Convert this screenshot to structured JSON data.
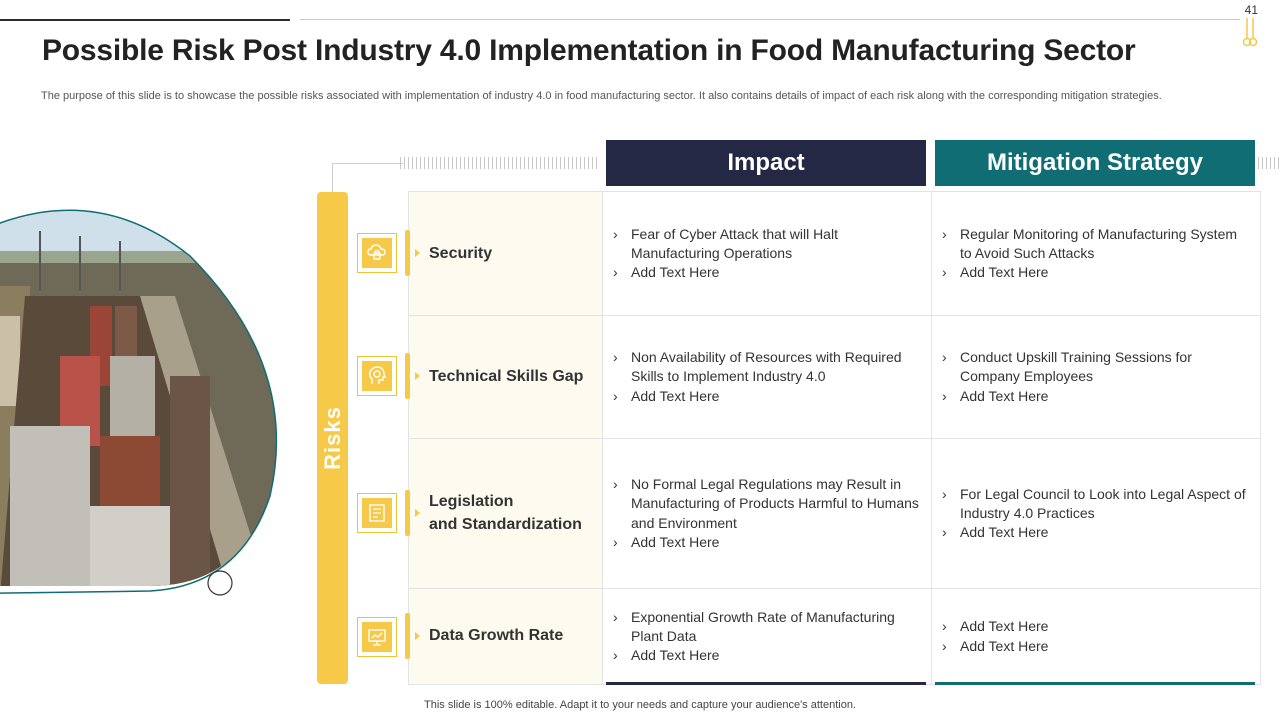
{
  "page_number": "41",
  "title": "Possible Risk Post Industry 4.0 Implementation in Food Manufacturing Sector",
  "subtitle": "The purpose of this slide is to showcase the possible risks associated with implementation of industry 4.0 in food manufacturing sector. It also contains details of impact of each risk along with the corresponding mitigation strategies.",
  "side_label": "Risks",
  "headers": {
    "impact": "Impact",
    "mitigation": "Mitigation Strategy"
  },
  "rows": [
    {
      "risk_line1": "Security",
      "risk_line2": "",
      "icon": "cloud-lock-icon",
      "impact": [
        "Fear of Cyber Attack that will Halt Manufacturing Operations",
        "Add Text Here"
      ],
      "mitigation": [
        "Regular Monitoring of Manufacturing System to Avoid Such Attacks",
        "Add Text Here"
      ]
    },
    {
      "risk_line1": "Technical Skills Gap",
      "risk_line2": "",
      "icon": "head-gear-icon",
      "impact": [
        "Non Availability of Resources with Required Skills to Implement Industry 4.0",
        "Add Text Here"
      ],
      "mitigation": [
        "Conduct Upskill Training Sessions for Company Employees",
        "Add Text Here"
      ]
    },
    {
      "risk_line1": "Legislation",
      "risk_line2": "and Standardization",
      "icon": "document-standards-icon",
      "impact": [
        "No Formal Legal Regulations may Result in Manufacturing of Products Harmful to Humans and Environment",
        "Add Text Here"
      ],
      "mitigation": [
        "For Legal Council to Look into Legal Aspect of Industry 4.0 Practices",
        "Add Text Here"
      ]
    },
    {
      "risk_line1": "Data Growth Rate",
      "risk_line2": "",
      "icon": "presentation-chart-icon",
      "impact": [
        "Exponential Growth Rate of Manufacturing Plant Data",
        "Add Text Here"
      ],
      "mitigation": [
        "Add Text Here",
        "Add Text Here"
      ]
    }
  ],
  "footer": "This slide is 100% editable. Adapt it to your needs and capture your audience's attention."
}
